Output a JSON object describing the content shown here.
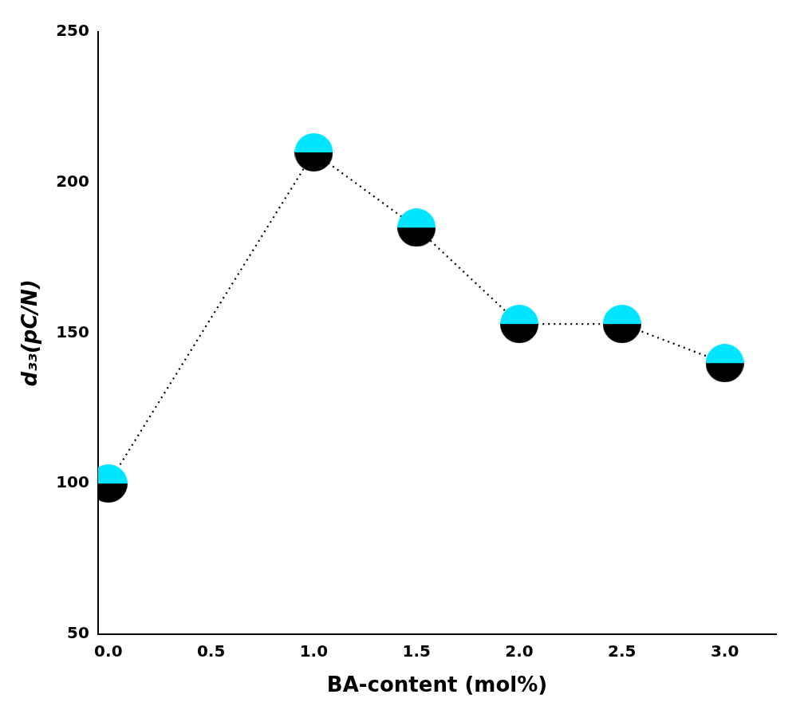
{
  "chart_data": {
    "type": "line",
    "xlabel": "BA-content (mol%)",
    "ylabel": "d₃₃(pC/N)",
    "x": [
      0.0,
      1.0,
      1.5,
      2.0,
      2.5,
      3.0
    ],
    "color": "#000000",
    "series": [
      {
        "color": "#00E5FF",
        "marker": "half-circle",
        "line_style": "dotted",
        "values": [
          100,
          210,
          185,
          153,
          153,
          140
        ]
      }
    ],
    "xlim": [
      -0.05,
      3.25
    ],
    "xticks": [
      {
        "value": 0.0,
        "label": "0.0"
      },
      0.5,
      {
        "value": 1.0,
        "label": "1.0"
      },
      1.5,
      {
        "value": 2.0,
        "label": "2.0"
      },
      2.5,
      {
        "value": 3.0,
        "label": "3.0"
      }
    ],
    "ylim": [
      50,
      250
    ],
    "yticks": [
      50,
      100,
      150,
      200,
      250
    ],
    "grid": false
  }
}
